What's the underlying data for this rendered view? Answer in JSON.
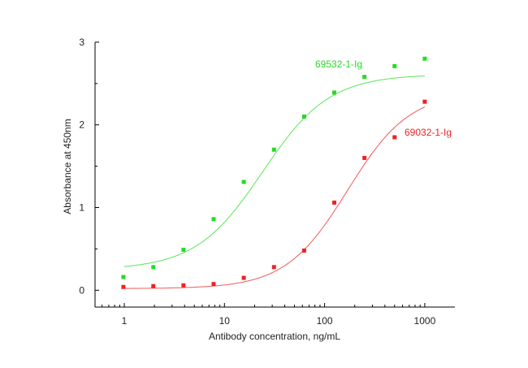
{
  "chart_data": {
    "type": "scatter",
    "title": "",
    "xlabel": "Antibody concentration, ng/mL",
    "ylabel": "Absorbance at 450nm",
    "xscale": "log",
    "xlim": [
      0.5,
      2000
    ],
    "ylim": [
      -0.2,
      3
    ],
    "x_ticks": [
      1,
      10,
      100,
      1000
    ],
    "x_tick_labels": [
      "1",
      "10",
      "100",
      "1000"
    ],
    "y_ticks": [
      0,
      1,
      2,
      3
    ],
    "y_tick_labels": [
      "0",
      "1",
      "2",
      "3"
    ],
    "grid": false,
    "x": [
      0.98,
      1.95,
      3.9,
      7.8,
      15.6,
      31.25,
      62.5,
      125,
      250,
      500,
      1000
    ],
    "series": [
      {
        "name": "69532-1-Ig",
        "color": "#22dd22",
        "values": [
          0.16,
          0.28,
          0.49,
          0.86,
          1.31,
          1.7,
          2.1,
          2.39,
          2.58,
          2.71,
          2.8
        ],
        "fit": {
          "model": "4PL",
          "bottom": 0.25,
          "top": 2.61,
          "ec50": 24,
          "hill": 1.3
        }
      },
      {
        "name": "69032-1-Ig",
        "color": "#ee2222",
        "values": [
          0.04,
          0.05,
          0.06,
          0.075,
          0.15,
          0.28,
          0.48,
          1.06,
          1.6,
          1.85,
          2.28
        ],
        "fit": {
          "model": "4PL",
          "bottom": 0.02,
          "top": 2.4,
          "ec50": 170,
          "hill": 1.4
        }
      }
    ]
  }
}
